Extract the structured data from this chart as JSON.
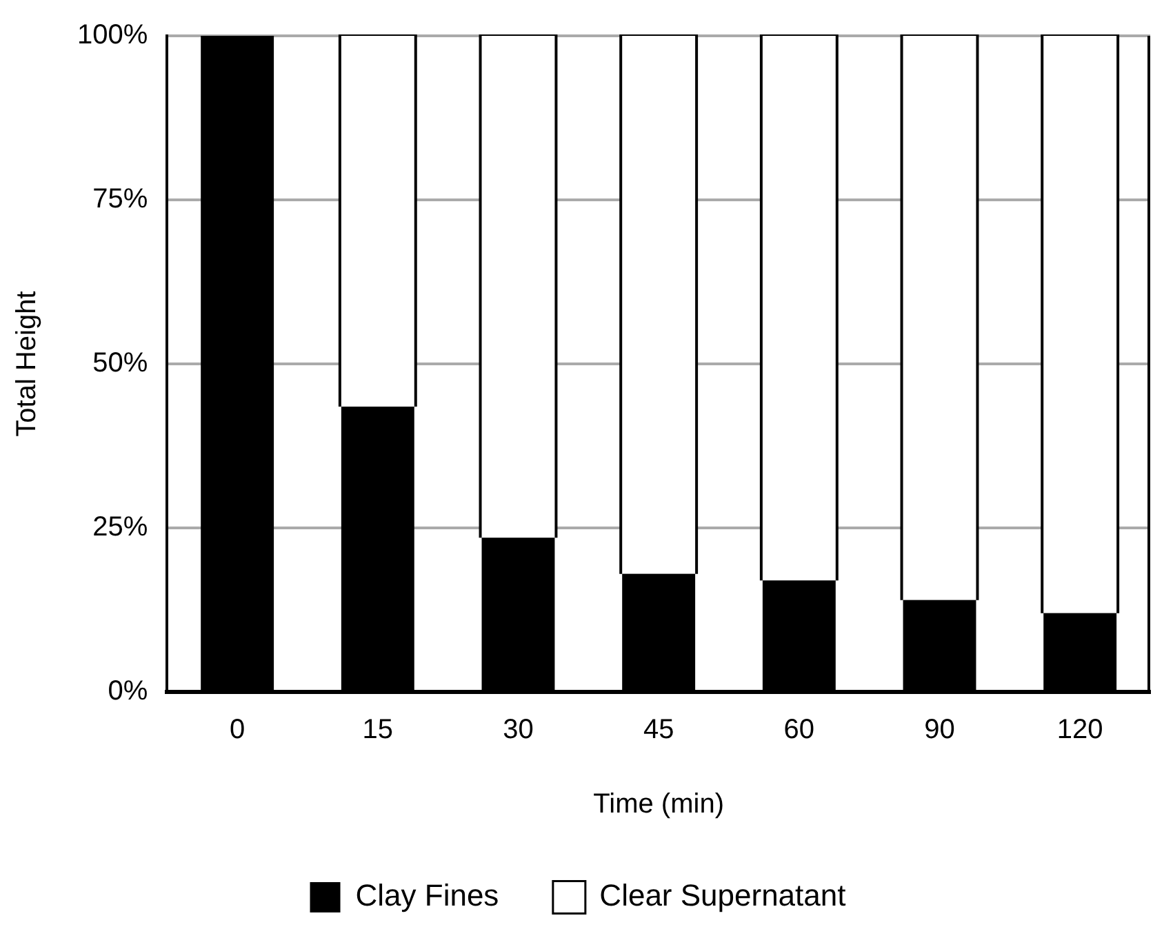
{
  "chart_data": {
    "type": "bar",
    "stacked": true,
    "xlabel": "Time (min)",
    "ylabel": "Total Height",
    "categories": [
      "0",
      "15",
      "30",
      "45",
      "60",
      "90",
      "120"
    ],
    "series": [
      {
        "name": "Clay Fines",
        "color": "#000000",
        "values": [
          100,
          43.5,
          23.5,
          18,
          17,
          14,
          12
        ]
      },
      {
        "name": "Clear Supernatant",
        "color": "#ffffff",
        "values": [
          0,
          56.5,
          76.5,
          82,
          83,
          86,
          88
        ]
      }
    ],
    "ylim": [
      0,
      100
    ],
    "yticks": [
      {
        "value": 0,
        "label": "0%"
      },
      {
        "value": 25,
        "label": "25%"
      },
      {
        "value": 50,
        "label": "50%"
      },
      {
        "value": 75,
        "label": "75%"
      },
      {
        "value": 100,
        "label": "100%"
      }
    ],
    "grid": "y",
    "legend": "bottom"
  }
}
